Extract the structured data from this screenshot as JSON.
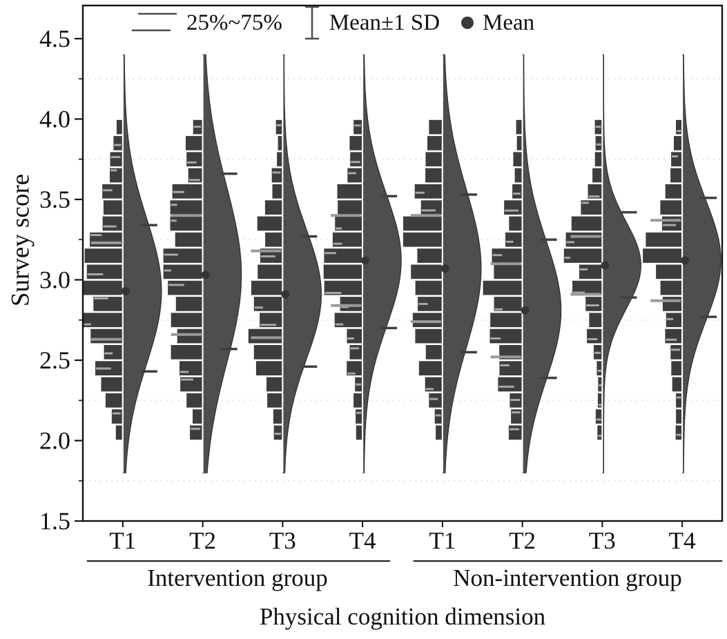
{
  "figure": {
    "y_axis_label": "Survey score",
    "x_axis_label": "Physical cognition dimension"
  },
  "legend": [
    {
      "label": "25%~75%",
      "glyph": "quartile-lines-icon"
    },
    {
      "label": "Mean±1 SD",
      "glyph": "errorbar-icon"
    },
    {
      "label": "Mean",
      "glyph": "mean-dot-icon"
    }
  ],
  "chart_data": {
    "type": "violin",
    "title": "",
    "xlabel": "Physical cognition dimension",
    "ylabel": "Survey score",
    "ylim": [
      1.5,
      4.5
    ],
    "y_ticks": [
      1.5,
      2.0,
      2.5,
      3.0,
      3.5,
      4.0,
      4.5
    ],
    "grid": "dotted-horizontal-minor",
    "legend_position": "top-inside",
    "histogram_bins": {
      "min": 2.0,
      "max": 4.0,
      "bin_width": 0.1
    },
    "groups": [
      {
        "name": "Intervention group",
        "categories": [
          "T1",
          "T2",
          "T3",
          "T4"
        ]
      },
      {
        "name": "Non-intervention group",
        "categories": [
          "T1",
          "T2",
          "T3",
          "T4"
        ]
      }
    ],
    "series": [
      {
        "group": "Intervention group",
        "category": "T1",
        "mean": 2.93,
        "sd": 0.45,
        "mean_plus_sd": 3.34,
        "mean_minus_sd": 2.43,
        "q25": 2.63,
        "q75": 3.23,
        "range_min": 1.8,
        "range_max": 4.4
      },
      {
        "group": "Intervention group",
        "category": "T2",
        "mean": 3.03,
        "sd": 0.55,
        "mean_plus_sd": 3.66,
        "mean_minus_sd": 2.57,
        "q25": 2.66,
        "q75": 3.4,
        "range_min": 1.8,
        "range_max": 4.4
      },
      {
        "group": "Intervention group",
        "category": "T3",
        "mean": 2.91,
        "sd": 0.4,
        "mean_plus_sd": 3.27,
        "mean_minus_sd": 2.46,
        "q25": 2.64,
        "q75": 3.18,
        "range_min": 1.8,
        "range_max": 4.4
      },
      {
        "group": "Intervention group",
        "category": "T4",
        "mean": 3.12,
        "sd": 0.41,
        "mean_plus_sd": 3.52,
        "mean_minus_sd": 2.7,
        "q25": 2.84,
        "q75": 3.4,
        "range_min": 1.8,
        "range_max": 4.4
      },
      {
        "group": "Non-intervention group",
        "category": "T1",
        "mean": 3.07,
        "sd": 0.49,
        "mean_plus_sd": 3.53,
        "mean_minus_sd": 2.55,
        "q25": 2.74,
        "q75": 3.4,
        "range_min": 1.8,
        "range_max": 4.4
      },
      {
        "group": "Non-intervention group",
        "category": "T2",
        "mean": 2.81,
        "sd": 0.43,
        "mean_plus_sd": 3.25,
        "mean_minus_sd": 2.39,
        "q25": 2.52,
        "q75": 3.1,
        "range_min": 1.8,
        "range_max": 4.4
      },
      {
        "group": "Non-intervention group",
        "category": "T3",
        "mean": 3.09,
        "sd": 0.27,
        "mean_plus_sd": 3.42,
        "mean_minus_sd": 2.89,
        "q25": 2.91,
        "q75": 3.27,
        "range_min": 1.8,
        "range_max": 4.4
      },
      {
        "group": "Non-intervention group",
        "category": "T4",
        "mean": 3.12,
        "sd": 0.37,
        "mean_plus_sd": 3.51,
        "mean_minus_sd": 2.77,
        "q25": 2.87,
        "q75": 3.37,
        "range_min": 1.8,
        "range_max": 4.4
      }
    ],
    "colors": {
      "violin_fill": "#4e4e4e",
      "violin_stroke": "#2d2d2d",
      "histogram_bar": "#3d3d3d",
      "quartile_line": "#9a9a9a",
      "light_tick": "#a8a8a8",
      "whisker": "#3f3f3f",
      "mean_dot": "#353535",
      "center_line": "#ffffff",
      "frame": "#111111",
      "gridline": "#dedede",
      "text": "#111111"
    }
  }
}
